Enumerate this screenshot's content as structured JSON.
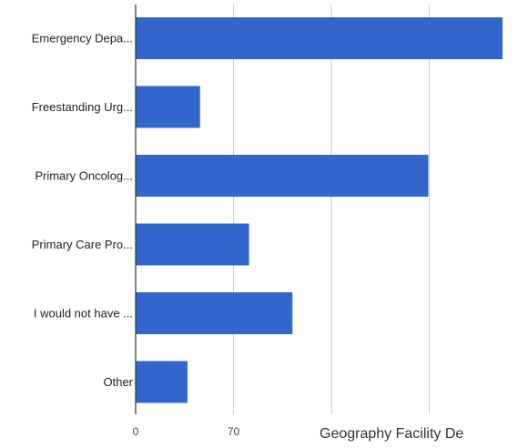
{
  "chart_data": {
    "type": "bar",
    "orientation": "horizontal",
    "categories": [
      "Emergency Depa...",
      "Freestanding Urg...",
      "Primary Oncolog...",
      "Primary Care Pro...",
      "I would not have ...",
      "Other"
    ],
    "values": [
      262,
      46,
      209,
      81,
      112,
      37
    ],
    "x_ticks": [
      "0",
      "70"
    ],
    "xlim": [
      0,
      262
    ],
    "grid": true,
    "bar_color": "#3366cc",
    "xlabel": "Geography Facility De"
  }
}
